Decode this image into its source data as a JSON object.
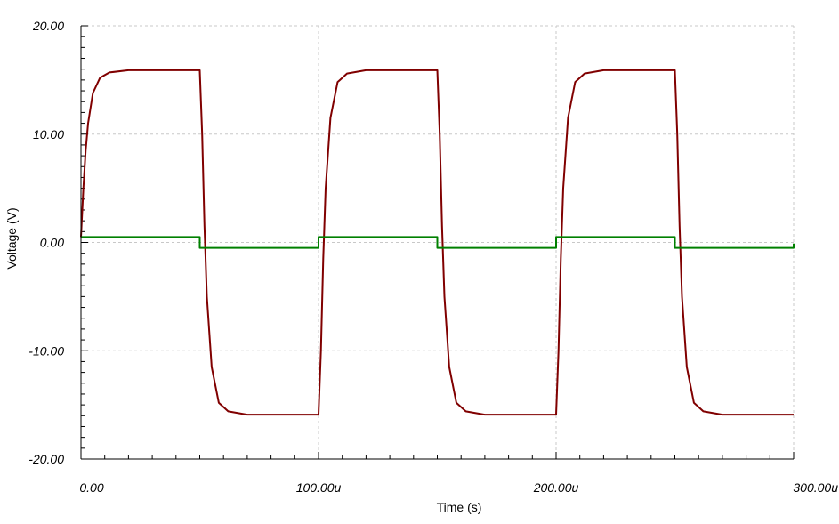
{
  "chart_data": {
    "type": "line",
    "xlabel": "Time (s)",
    "ylabel": "Voltage (V)",
    "xlim": [
      0,
      0.0003
    ],
    "ylim": [
      -20,
      20
    ],
    "grid": true,
    "x_ticks": [
      {
        "value": 0,
        "label": "0.00"
      },
      {
        "value": 0.0001,
        "label": "100.00u"
      },
      {
        "value": 0.0002,
        "label": "200.00u"
      },
      {
        "value": 0.0003,
        "label": "300.00u"
      }
    ],
    "y_ticks": [
      {
        "value": 20,
        "label": "20.00"
      },
      {
        "value": 10,
        "label": "10.00"
      },
      {
        "value": 0,
        "label": "0.00"
      },
      {
        "value": -10,
        "label": "-10.00"
      },
      {
        "value": -20,
        "label": "-20.00"
      }
    ],
    "series": [
      {
        "color": "#800000",
        "x": [
          0,
          1e-06,
          2e-06,
          3e-06,
          5e-06,
          8e-06,
          1.2e-05,
          2e-05,
          5e-05,
          5.1e-05,
          5.2e-05,
          5.3e-05,
          5.5e-05,
          5.8e-05,
          6.2e-05,
          7e-05,
          0.0001,
          0.000101,
          0.000102,
          0.000103,
          0.000105,
          0.000108,
          0.000112,
          0.00012,
          0.00015,
          0.000151,
          0.000152,
          0.000153,
          0.000155,
          0.000158,
          0.000162,
          0.00017,
          0.0002,
          0.000201,
          0.000202,
          0.000203,
          0.000205,
          0.000208,
          0.000212,
          0.00022,
          0.00025,
          0.000251,
          0.000252,
          0.000253,
          0.000255,
          0.000258,
          0.000262,
          0.00027,
          0.0003
        ],
        "y": [
          0.5,
          5,
          8.5,
          11,
          13.8,
          15.2,
          15.7,
          15.9,
          15.9,
          10,
          1.5,
          -5,
          -11.5,
          -14.8,
          -15.6,
          -15.9,
          -15.9,
          -10,
          -1.5,
          5,
          11.5,
          14.8,
          15.6,
          15.9,
          15.9,
          10,
          1.5,
          -5,
          -11.5,
          -14.8,
          -15.6,
          -15.9,
          -15.9,
          -10,
          -1.5,
          5,
          11.5,
          14.8,
          15.6,
          15.9,
          15.9,
          10,
          1.5,
          -5,
          -11.5,
          -14.8,
          -15.6,
          -15.9,
          -15.9
        ]
      },
      {
        "color": "#008000",
        "x": [
          0,
          5e-05,
          5e-05,
          0.0001,
          0.0001,
          0.00015,
          0.00015,
          0.0002,
          0.0002,
          0.00025,
          0.00025,
          0.0003,
          0.0003
        ],
        "y": [
          0.5,
          0.5,
          -0.5,
          -0.5,
          0.5,
          0.5,
          -0.5,
          -0.5,
          0.5,
          0.5,
          -0.5,
          -0.5,
          -0.1
        ]
      }
    ]
  }
}
